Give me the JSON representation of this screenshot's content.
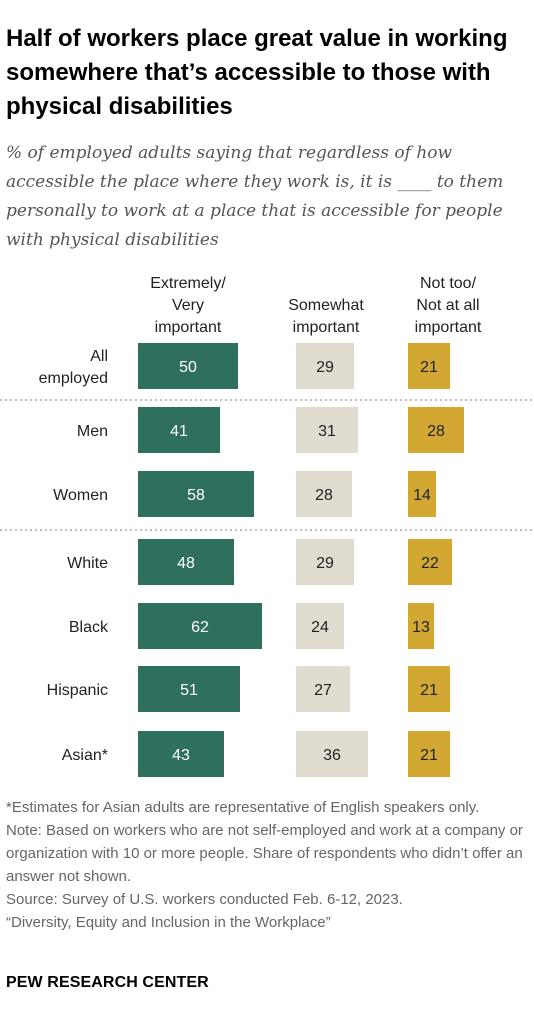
{
  "title": "Half of workers place great value in working somewhere that’s accessible to those with physical disabilities",
  "subtitle": "% of employed adults saying that regardless of how accessible the place where they work is, it is ____ to them personally to work at a place that is accessible for people with physical disabilities",
  "notes": [
    "*Estimates for Asian adults are representative of English speakers only.",
    "Note: Based on workers who are not self-employed and work at a company or organization with 10 or more people. Share of respondents who didn’t offer an answer not shown.",
    "Source: Survey of U.S. workers conducted Feb. 6-12, 2023.",
    "“Diversity, Equity and Inclusion in the Workplace”"
  ],
  "footer": "PEW RESEARCH CENTER",
  "chart_data": {
    "type": "bar",
    "orientation": "horizontal",
    "layout": "separate columns per response",
    "series": [
      {
        "name": "Extremely/\nVery\nimportant",
        "color": "#2e6f5e",
        "values": [
          50,
          41,
          58,
          48,
          62,
          51,
          43
        ]
      },
      {
        "name": "Somewhat\nimportant",
        "color": "#e0dccf",
        "values": [
          29,
          31,
          28,
          29,
          24,
          27,
          36
        ]
      },
      {
        "name": "Not too/\nNot at all\nimportant",
        "color": "#d3a832",
        "values": [
          21,
          28,
          14,
          22,
          13,
          21,
          21
        ]
      }
    ],
    "categories": [
      "All\nemployed",
      "Men",
      "Women",
      "White",
      "Black",
      "Hispanic",
      "Asian*"
    ],
    "group_separators_after": [
      0,
      2
    ],
    "data_labels": true
  }
}
